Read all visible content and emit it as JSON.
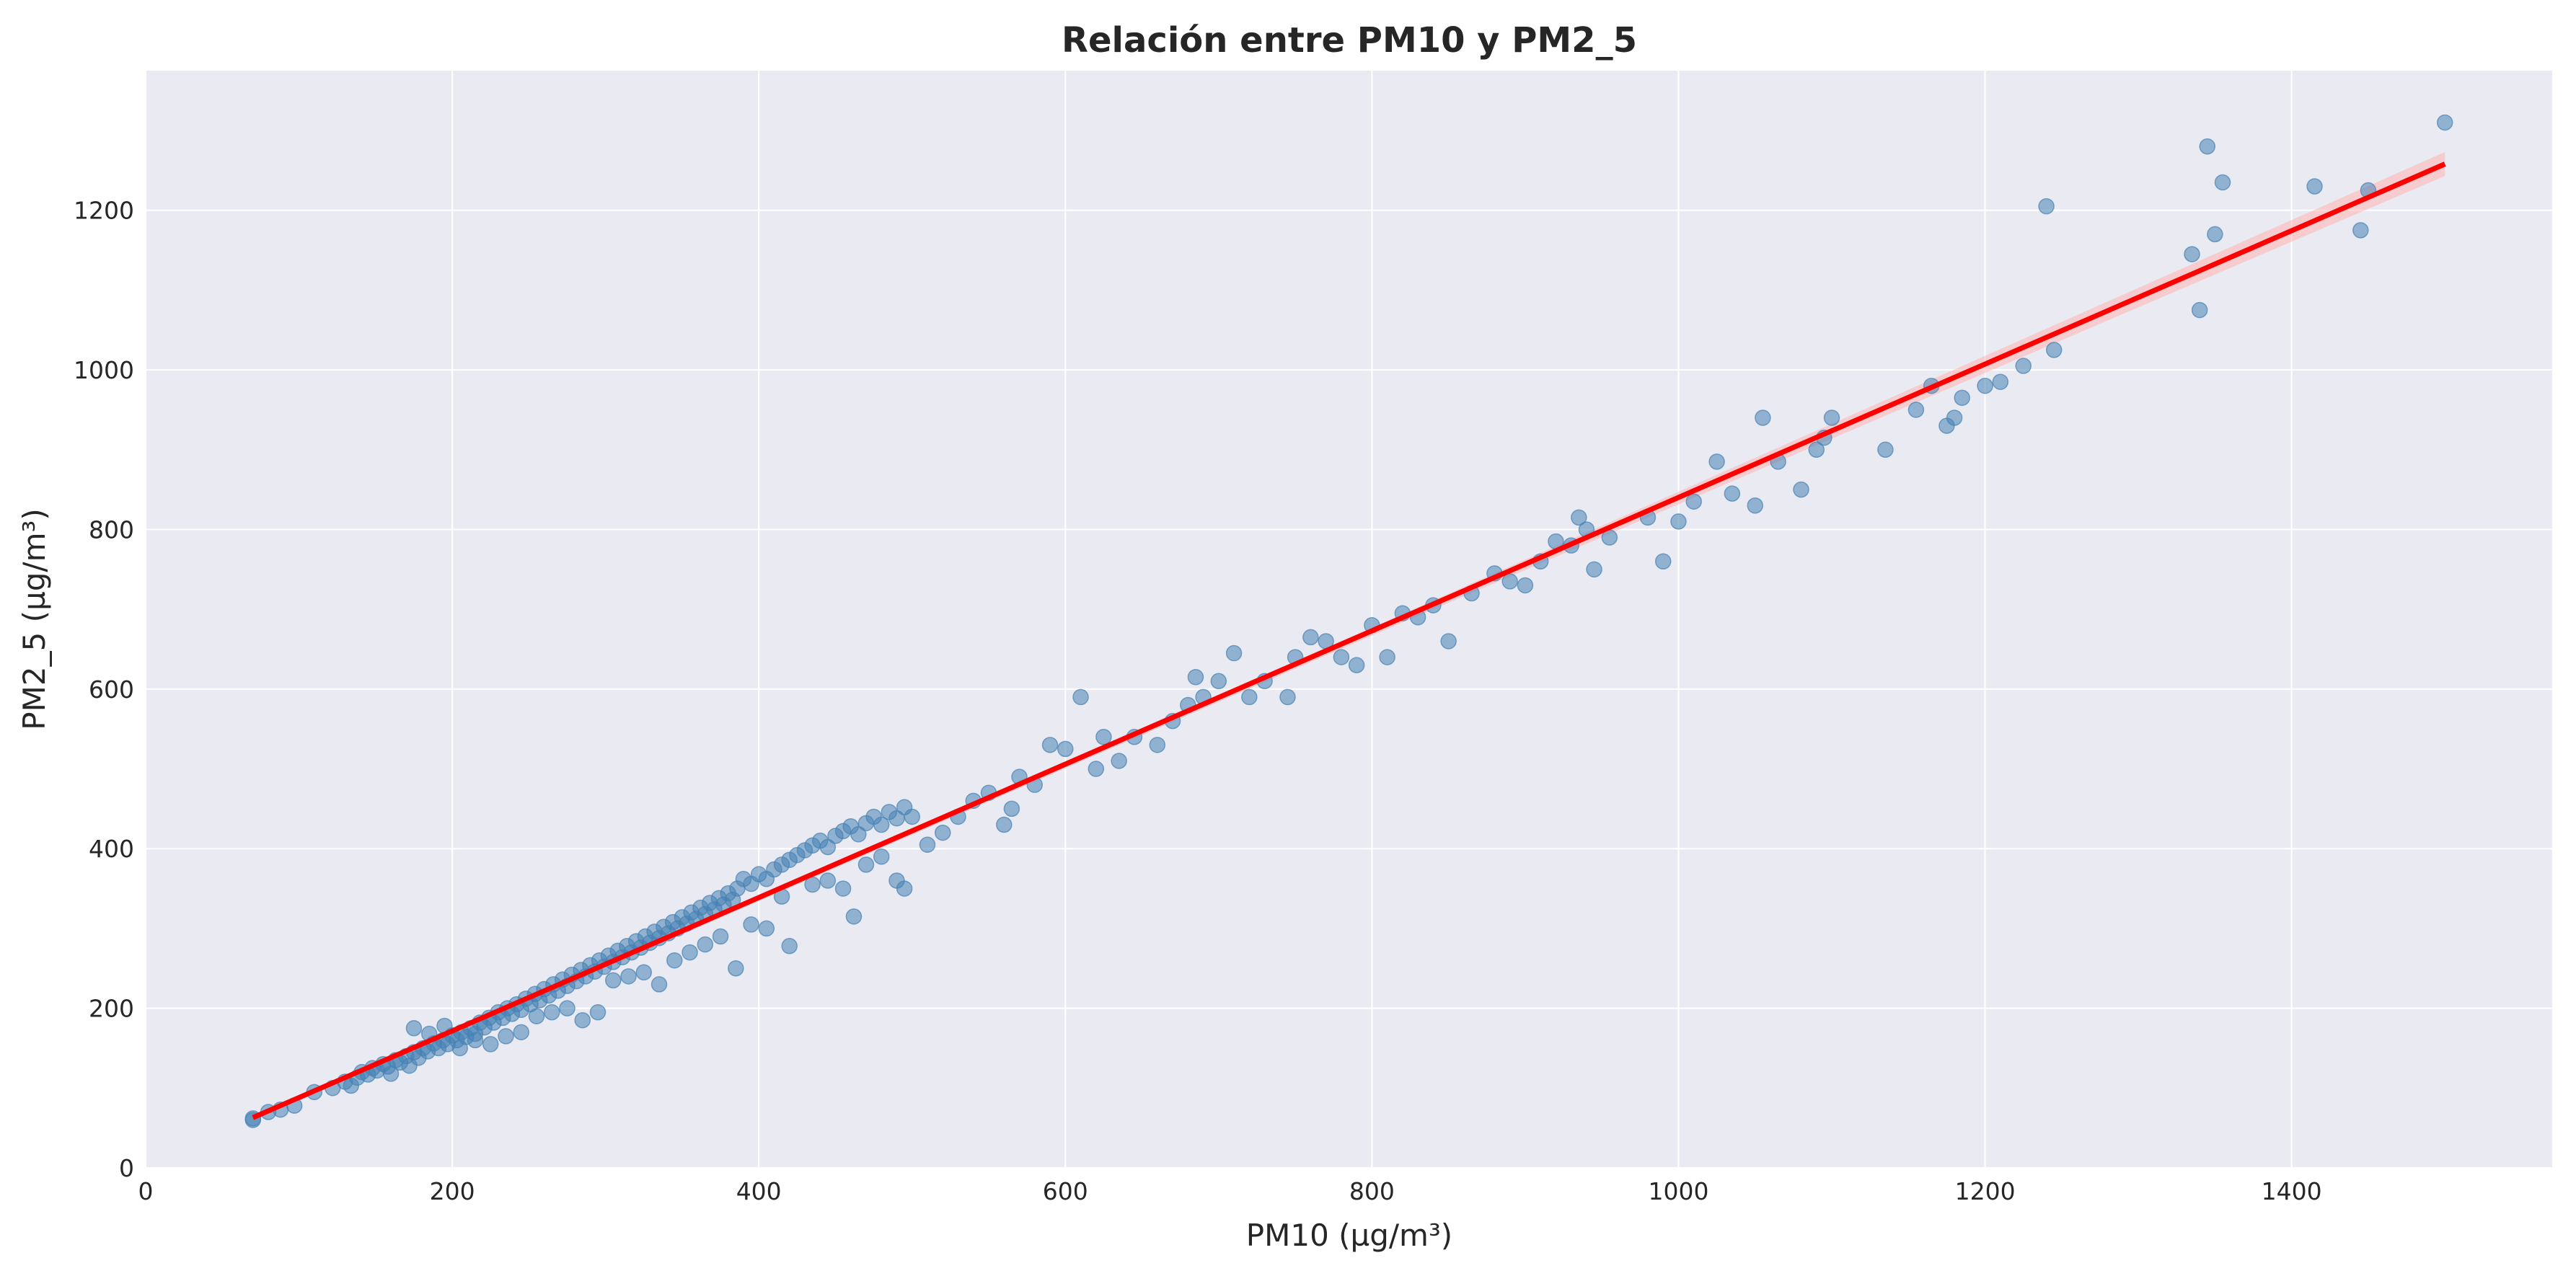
{
  "chart_data": {
    "type": "scatter",
    "title": "Relación entre PM10 y PM2_5",
    "xlabel": "PM10 (µg/m³)",
    "ylabel": "PM2_5 (µg/m³)",
    "xlim": [
      0,
      1570
    ],
    "ylim": [
      0,
      1375
    ],
    "xticks": [
      0,
      200,
      400,
      600,
      800,
      1000,
      1200,
      1400
    ],
    "yticks": [
      0,
      200,
      400,
      600,
      800,
      1000,
      1200
    ],
    "grid": true,
    "legend": "none",
    "colors": {
      "background": "#eaeaf2",
      "grid": "#ffffff",
      "points": "#4682b4",
      "fit_line": "#ff0000",
      "confidence_band": "#ffb3b3"
    },
    "trend": {
      "x": [
        70,
        1500
      ],
      "y": [
        63,
        1258
      ],
      "band": [
        [
          70,
          60,
          66
        ],
        [
          800,
          667,
          677
        ],
        [
          1500,
          1243,
          1273
        ]
      ]
    },
    "points": [
      [
        70,
        62
      ],
      [
        70,
        60
      ],
      [
        80,
        70
      ],
      [
        88,
        73
      ],
      [
        97,
        78
      ],
      [
        110,
        95
      ],
      [
        122,
        100
      ],
      [
        130,
        108
      ],
      [
        134,
        103
      ],
      [
        138,
        113
      ],
      [
        141,
        120
      ],
      [
        145,
        117
      ],
      [
        148,
        125
      ],
      [
        151,
        122
      ],
      [
        155,
        130
      ],
      [
        158,
        127
      ],
      [
        160,
        118
      ],
      [
        163,
        135
      ],
      [
        166,
        132
      ],
      [
        170,
        140
      ],
      [
        172,
        128
      ],
      [
        175,
        145
      ],
      [
        178,
        138
      ],
      [
        181,
        150
      ],
      [
        184,
        146
      ],
      [
        188,
        156
      ],
      [
        191,
        150
      ],
      [
        194,
        160
      ],
      [
        197,
        155
      ],
      [
        200,
        166
      ],
      [
        203,
        160
      ],
      [
        206,
        170
      ],
      [
        209,
        164
      ],
      [
        212,
        175
      ],
      [
        215,
        168
      ],
      [
        218,
        182
      ],
      [
        221,
        176
      ],
      [
        224,
        188
      ],
      [
        227,
        182
      ],
      [
        230,
        195
      ],
      [
        233,
        188
      ],
      [
        236,
        200
      ],
      [
        239,
        193
      ],
      [
        242,
        205
      ],
      [
        245,
        198
      ],
      [
        248,
        212
      ],
      [
        251,
        205
      ],
      [
        254,
        218
      ],
      [
        257,
        210
      ],
      [
        260,
        224
      ],
      [
        263,
        216
      ],
      [
        266,
        230
      ],
      [
        269,
        222
      ],
      [
        272,
        236
      ],
      [
        275,
        228
      ],
      [
        278,
        242
      ],
      [
        281,
        234
      ],
      [
        284,
        248
      ],
      [
        287,
        240
      ],
      [
        290,
        254
      ],
      [
        293,
        246
      ],
      [
        296,
        260
      ],
      [
        299,
        252
      ],
      [
        302,
        266
      ],
      [
        305,
        258
      ],
      [
        308,
        272
      ],
      [
        311,
        264
      ],
      [
        314,
        278
      ],
      [
        317,
        270
      ],
      [
        320,
        284
      ],
      [
        323,
        276
      ],
      [
        326,
        290
      ],
      [
        329,
        282
      ],
      [
        332,
        296
      ],
      [
        335,
        288
      ],
      [
        338,
        302
      ],
      [
        341,
        294
      ],
      [
        344,
        308
      ],
      [
        347,
        300
      ],
      [
        350,
        314
      ],
      [
        353,
        306
      ],
      [
        356,
        320
      ],
      [
        359,
        312
      ],
      [
        362,
        326
      ],
      [
        365,
        318
      ],
      [
        368,
        332
      ],
      [
        371,
        324
      ],
      [
        374,
        338
      ],
      [
        377,
        330
      ],
      [
        380,
        344
      ],
      [
        383,
        336
      ],
      [
        386,
        350
      ],
      [
        390,
        362
      ],
      [
        395,
        356
      ],
      [
        400,
        368
      ],
      [
        405,
        362
      ],
      [
        410,
        374
      ],
      [
        415,
        380
      ],
      [
        420,
        386
      ],
      [
        425,
        392
      ],
      [
        430,
        398
      ],
      [
        435,
        404
      ],
      [
        440,
        410
      ],
      [
        445,
        402
      ],
      [
        450,
        416
      ],
      [
        455,
        422
      ],
      [
        460,
        428
      ],
      [
        465,
        418
      ],
      [
        470,
        432
      ],
      [
        475,
        440
      ],
      [
        480,
        430
      ],
      [
        485,
        446
      ],
      [
        490,
        438
      ],
      [
        495,
        452
      ],
      [
        175,
        175
      ],
      [
        185,
        168
      ],
      [
        195,
        178
      ],
      [
        205,
        150
      ],
      [
        215,
        160
      ],
      [
        225,
        155
      ],
      [
        235,
        165
      ],
      [
        245,
        170
      ],
      [
        255,
        190
      ],
      [
        265,
        195
      ],
      [
        275,
        200
      ],
      [
        285,
        185
      ],
      [
        295,
        195
      ],
      [
        305,
        235
      ],
      [
        315,
        240
      ],
      [
        325,
        245
      ],
      [
        335,
        230
      ],
      [
        345,
        260
      ],
      [
        355,
        270
      ],
      [
        365,
        280
      ],
      [
        375,
        290
      ],
      [
        385,
        250
      ],
      [
        395,
        305
      ],
      [
        405,
        300
      ],
      [
        415,
        340
      ],
      [
        420,
        278
      ],
      [
        435,
        355
      ],
      [
        445,
        360
      ],
      [
        455,
        350
      ],
      [
        462,
        315
      ],
      [
        470,
        380
      ],
      [
        480,
        390
      ],
      [
        490,
        360
      ],
      [
        495,
        350
      ],
      [
        500,
        440
      ],
      [
        510,
        405
      ],
      [
        520,
        420
      ],
      [
        530,
        440
      ],
      [
        540,
        460
      ],
      [
        550,
        470
      ],
      [
        560,
        430
      ],
      [
        565,
        450
      ],
      [
        570,
        490
      ],
      [
        580,
        480
      ],
      [
        590,
        530
      ],
      [
        600,
        525
      ],
      [
        610,
        590
      ],
      [
        620,
        500
      ],
      [
        625,
        540
      ],
      [
        635,
        510
      ],
      [
        645,
        540
      ],
      [
        660,
        530
      ],
      [
        670,
        560
      ],
      [
        680,
        580
      ],
      [
        685,
        615
      ],
      [
        690,
        590
      ],
      [
        700,
        610
      ],
      [
        710,
        645
      ],
      [
        720,
        590
      ],
      [
        730,
        610
      ],
      [
        745,
        590
      ],
      [
        750,
        640
      ],
      [
        760,
        665
      ],
      [
        770,
        660
      ],
      [
        780,
        640
      ],
      [
        790,
        630
      ],
      [
        800,
        680
      ],
      [
        810,
        640
      ],
      [
        820,
        695
      ],
      [
        830,
        690
      ],
      [
        840,
        705
      ],
      [
        850,
        660
      ],
      [
        865,
        720
      ],
      [
        880,
        745
      ],
      [
        890,
        735
      ],
      [
        900,
        730
      ],
      [
        910,
        760
      ],
      [
        920,
        785
      ],
      [
        930,
        780
      ],
      [
        935,
        815
      ],
      [
        940,
        800
      ],
      [
        945,
        750
      ],
      [
        955,
        790
      ],
      [
        980,
        815
      ],
      [
        990,
        760
      ],
      [
        1000,
        810
      ],
      [
        1010,
        835
      ],
      [
        1025,
        885
      ],
      [
        1035,
        845
      ],
      [
        1050,
        830
      ],
      [
        1055,
        940
      ],
      [
        1065,
        885
      ],
      [
        1080,
        850
      ],
      [
        1090,
        900
      ],
      [
        1095,
        915
      ],
      [
        1100,
        940
      ],
      [
        1135,
        900
      ],
      [
        1155,
        950
      ],
      [
        1165,
        980
      ],
      [
        1175,
        930
      ],
      [
        1180,
        940
      ],
      [
        1185,
        965
      ],
      [
        1200,
        980
      ],
      [
        1210,
        985
      ],
      [
        1225,
        1005
      ],
      [
        1240,
        1205
      ],
      [
        1245,
        1025
      ],
      [
        1335,
        1145
      ],
      [
        1340,
        1075
      ],
      [
        1345,
        1280
      ],
      [
        1350,
        1170
      ],
      [
        1355,
        1235
      ],
      [
        1415,
        1230
      ],
      [
        1445,
        1175
      ],
      [
        1450,
        1225
      ],
      [
        1500,
        1310
      ]
    ]
  }
}
